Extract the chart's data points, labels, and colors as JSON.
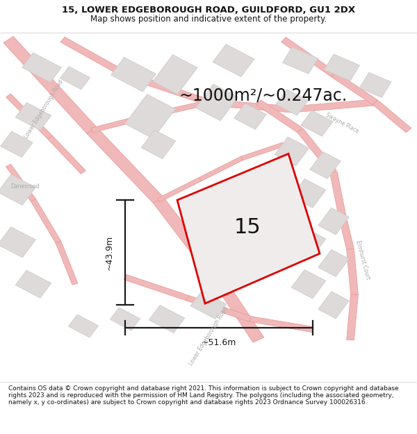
{
  "title_line1": "15, LOWER EDGEBOROUGH ROAD, GUILDFORD, GU1 2DX",
  "title_line2": "Map shows position and indicative extent of the property.",
  "area_text": "~1000m²/~0.247ac.",
  "property_label": "15",
  "dim_vertical": "~43.9m",
  "dim_horizontal": "~51.6m",
  "footer": "Contains OS data © Crown copyright and database right 2021. This information is subject to Crown copyright and database rights 2023 and is reproduced with the permission of HM Land Registry. The polygons (including the associated geometry, namely x, y co-ordinates) are subject to Crown copyright and database rights 2023 Ordnance Survey 100026316.",
  "bg_color": "#ffffff",
  "map_bg": "#f5f3f3",
  "road_color": "#f0b8b8",
  "road_outline_color": "#e89898",
  "building_fill": "#dedada",
  "building_edge": "#d0cccc",
  "property_edge_color": "#dd0000",
  "property_fill": "#f0ecec",
  "dim_color": "#1a1a1a",
  "title_color": "#111111",
  "footer_color": "#111111",
  "road_label_color": "#aaaaaa",
  "title_fontsize": 9.5,
  "subtitle_fontsize": 8.5,
  "area_fontsize": 17,
  "label_fontsize": 22,
  "dim_fontsize": 9,
  "footer_fontsize": 6.5
}
